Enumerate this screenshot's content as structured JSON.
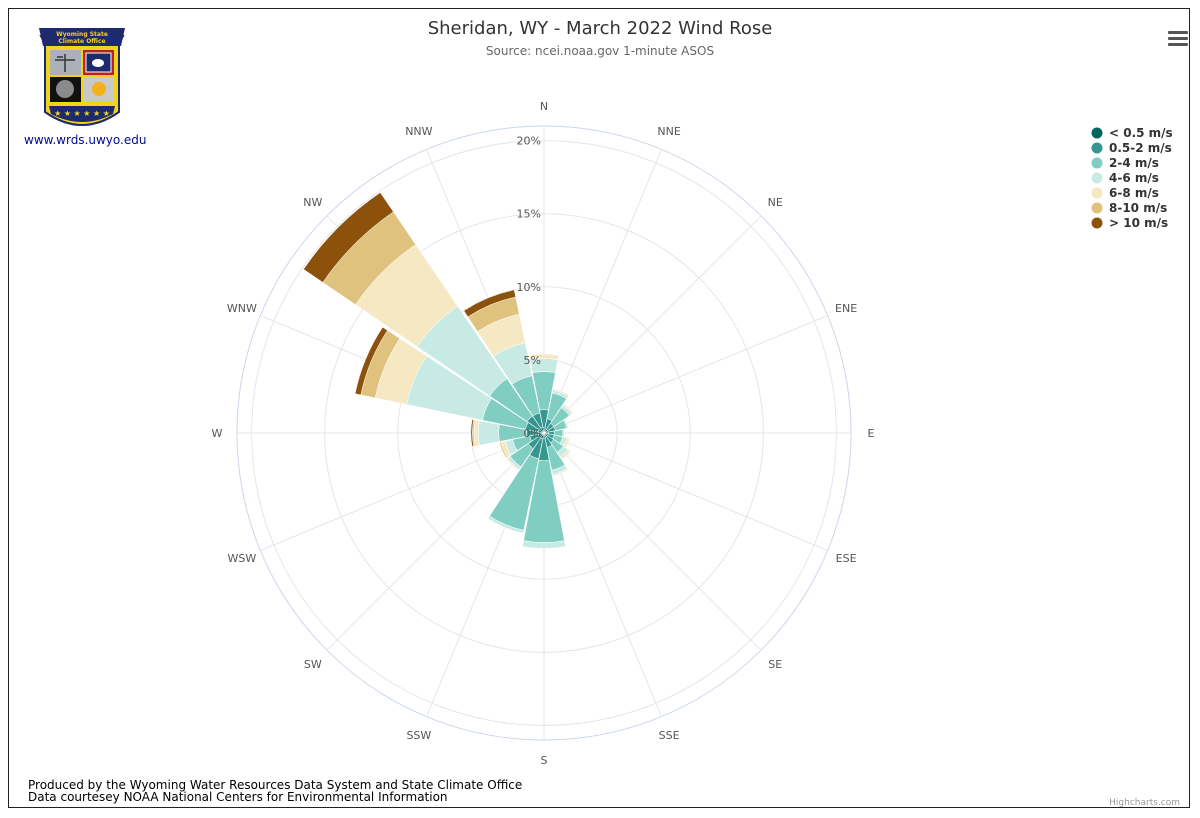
{
  "header": {
    "title": "Sheridan, WY - March 2022 Wind Rose",
    "subtitle": "Source: ncei.noaa.gov 1-minute ASOS"
  },
  "logo": {
    "banner_line1": "Wyoming State",
    "banner_line2": "Climate Office",
    "link_text": "www.wrds.uwyo.edu"
  },
  "menu": {
    "icon": "hamburger-menu-icon"
  },
  "footer": {
    "line1": "Produced by the Wyoming Water Resources Data System and State Climate Office",
    "line2": "Data courtesey NOAA National Centers for Environmental Information",
    "credit": "Highcharts.com"
  },
  "chart_data": {
    "type": "wind-rose",
    "directions": [
      "N",
      "NNE",
      "NE",
      "ENE",
      "E",
      "ESE",
      "SE",
      "SSE",
      "S",
      "SSW",
      "SW",
      "WSW",
      "W",
      "WNW",
      "NW",
      "NNW"
    ],
    "radial_ticks": [
      "0%",
      "5%",
      "10%",
      "15%",
      "20%"
    ],
    "radial_max": 21,
    "legend_placement": "top-right",
    "series": [
      {
        "name": "< 0.5 m/s",
        "color": "#01665e",
        "values": [
          0.4,
          0.3,
          0.3,
          0.3,
          0.3,
          0.3,
          0.3,
          0.3,
          0.4,
          0.4,
          0.4,
          0.4,
          0.4,
          0.4,
          0.4,
          0.4
        ]
      },
      {
        "name": "0.5-2 m/s",
        "color": "#35978f",
        "values": [
          1.2,
          0.7,
          0.5,
          0.5,
          0.4,
          0.4,
          0.5,
          0.7,
          1.5,
          1.4,
          0.9,
          0.6,
          0.8,
          0.9,
          1.0,
          1.0
        ]
      },
      {
        "name": "2-4 m/s",
        "color": "#80cdc1",
        "values": [
          2.6,
          1.8,
          1.3,
          0.8,
          0.6,
          0.6,
          0.8,
          1.6,
          5.6,
          5.0,
          1.5,
          1.2,
          1.9,
          3.0,
          3.1,
          2.6
        ]
      },
      {
        "name": "4-6 m/s",
        "color": "#c7eae5",
        "values": [
          0.9,
          0.2,
          0.2,
          0.1,
          0.1,
          0.3,
          0.4,
          0.3,
          0.4,
          0.2,
          0.2,
          0.5,
          1.4,
          5.3,
          6.0,
          2.3
        ]
      },
      {
        "name": "6-8 m/s",
        "color": "#f6e8c3",
        "values": [
          0.3,
          0.1,
          0.1,
          0.0,
          0.0,
          0.2,
          0.2,
          0.1,
          0.0,
          0.0,
          0.1,
          0.3,
          0.3,
          2.2,
          5.1,
          2.0
        ]
      },
      {
        "name": "8-10 m/s",
        "color": "#dfc27d",
        "values": [
          0.0,
          0.0,
          0.0,
          0.0,
          0.0,
          0.0,
          0.0,
          0.0,
          0.0,
          0.0,
          0.0,
          0.1,
          0.1,
          1.0,
          2.7,
          1.2
        ]
      },
      {
        "name": "> 10 m/s",
        "color": "#8c510a",
        "values": [
          0.0,
          0.0,
          0.0,
          0.0,
          0.0,
          0.0,
          0.0,
          0.0,
          0.0,
          0.0,
          0.0,
          0.0,
          0.1,
          0.4,
          1.6,
          0.5
        ]
      }
    ]
  }
}
